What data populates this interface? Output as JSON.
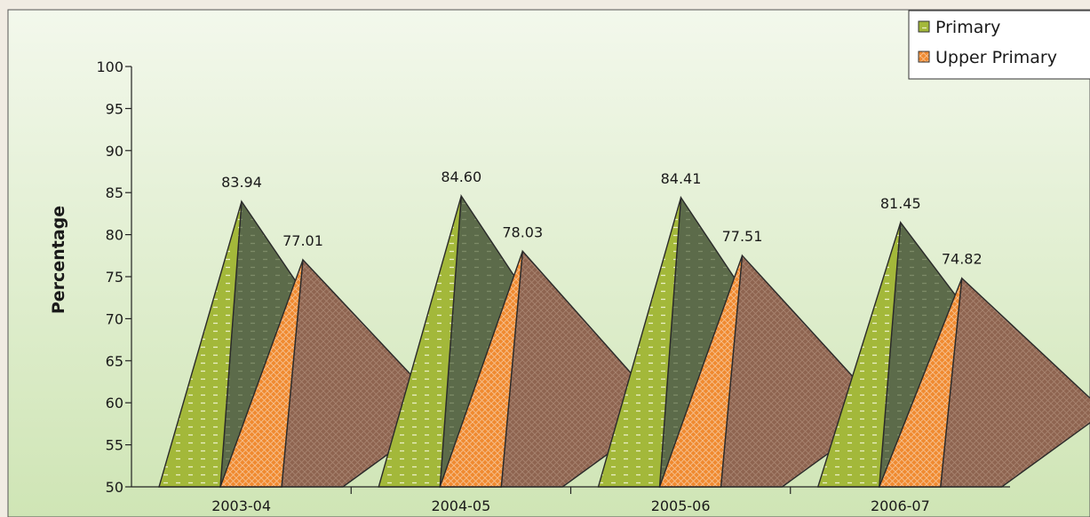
{
  "chart_data": {
    "type": "bar",
    "categories": [
      "2003-04",
      "2004-05",
      "2005-06",
      "2006-07"
    ],
    "series": [
      {
        "name": "Primary",
        "values": [
          83.94,
          84.6,
          84.41,
          81.45
        ]
      },
      {
        "name": "Upper Primary",
        "values": [
          77.01,
          78.03,
          77.51,
          74.82
        ]
      }
    ],
    "data_labels": [
      [
        "83.94",
        "84.60",
        "84.41",
        "81.45"
      ],
      [
        "77.01",
        "78.03",
        "77.51",
        "74.82"
      ]
    ],
    "title": "",
    "xlabel": "",
    "ylabel": "Percentage",
    "ylim": [
      50,
      100
    ],
    "yticks": [
      50,
      55,
      60,
      65,
      70,
      75,
      80,
      85,
      90,
      95,
      100
    ],
    "grid": false,
    "legend": "top-right",
    "colors": {
      "primary_front": "#a3b83a",
      "primary_side": "#5c6b4a",
      "upper_front": "#f08a30",
      "upper_side": "#8e6450",
      "plot_bg_top": "#f3f8ec",
      "plot_bg_bottom": "#cfe5b5"
    }
  }
}
